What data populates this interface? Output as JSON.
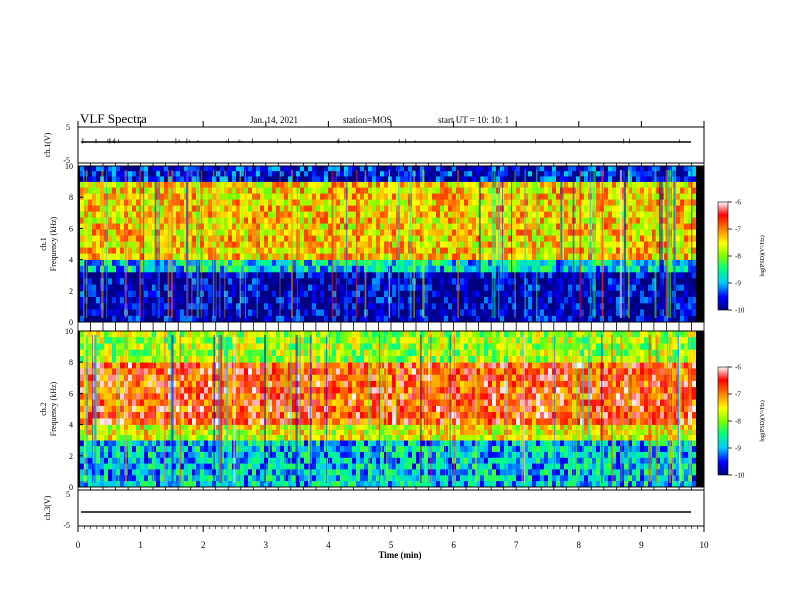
{
  "header": {
    "title": "VLF Spectra",
    "date": "Jan. 14, 2021",
    "station": "station=MOS",
    "start": "start  UT =   10: 10: 1"
  },
  "colors": {
    "scale": [
      "#000080",
      "#0000ff",
      "#00c8ff",
      "#00ff80",
      "#80ff00",
      "#ffff00",
      "#ff8000",
      "#ff0000",
      "#ffffff"
    ],
    "trace": "#000000"
  },
  "chart_data": [
    {
      "type": "line",
      "id": "ch1-waveform",
      "ylabel": "ch.1(V)",
      "ylim": [
        -5,
        5
      ],
      "yticks": [
        "5",
        "-5"
      ],
      "x": [
        0,
        10
      ],
      "y": [
        0,
        0
      ]
    },
    {
      "type": "heatmap",
      "id": "ch1-spectrogram",
      "ylabel_top": "ch.1",
      "ylabel": "Frequency (kHz)",
      "ylim": [
        0,
        10
      ],
      "yticks": [
        "0",
        "2",
        "4",
        "6",
        "8",
        "10"
      ],
      "colorbar": {
        "label": "log(PSD)(V²/Hz)",
        "ticks": [
          "-6",
          "-7",
          "-8",
          "-9",
          "-10"
        ],
        "range": [
          -10,
          -6
        ]
      },
      "bands": [
        {
          "freq": [
            0,
            3.2
          ],
          "level": -9.8
        },
        {
          "freq": [
            3.2,
            4.0
          ],
          "level": -8.8
        },
        {
          "freq": [
            4.0,
            9.0
          ],
          "level": -7.4
        },
        {
          "freq": [
            9.0,
            10.0
          ],
          "level": -9.6
        }
      ]
    },
    {
      "type": "heatmap",
      "id": "ch2-spectrogram",
      "ylabel_top": "ch.2",
      "ylabel": "Frequency (kHz)",
      "ylim": [
        0,
        10
      ],
      "yticks": [
        "0",
        "2",
        "4",
        "6",
        "8",
        "10"
      ],
      "colorbar": {
        "label": "log(PSD)(V²/Hz)",
        "ticks": [
          "-6",
          "-7",
          "-8",
          "-9",
          "-10"
        ],
        "range": [
          -10,
          -6
        ]
      },
      "bands": [
        {
          "freq": [
            0,
            3.0
          ],
          "level": -8.9
        },
        {
          "freq": [
            3.0,
            4.0
          ],
          "level": -7.6
        },
        {
          "freq": [
            4.0,
            8.0
          ],
          "level": -6.7
        },
        {
          "freq": [
            8.0,
            10.0
          ],
          "level": -7.9
        }
      ]
    },
    {
      "type": "line",
      "id": "ch3-waveform",
      "ylabel": "ch.3(V)",
      "ylim": [
        -5,
        5
      ],
      "yticks": [
        "5",
        "-5"
      ],
      "x": [
        0,
        10
      ],
      "y": [
        -2.3,
        -2.3
      ]
    }
  ],
  "xaxis": {
    "label": "Time  (min)",
    "ticks": [
      "0",
      "1",
      "2",
      "3",
      "4",
      "5",
      "6",
      "7",
      "8",
      "9",
      "10"
    ],
    "range": [
      0,
      10
    ],
    "data_end": 9.83
  }
}
